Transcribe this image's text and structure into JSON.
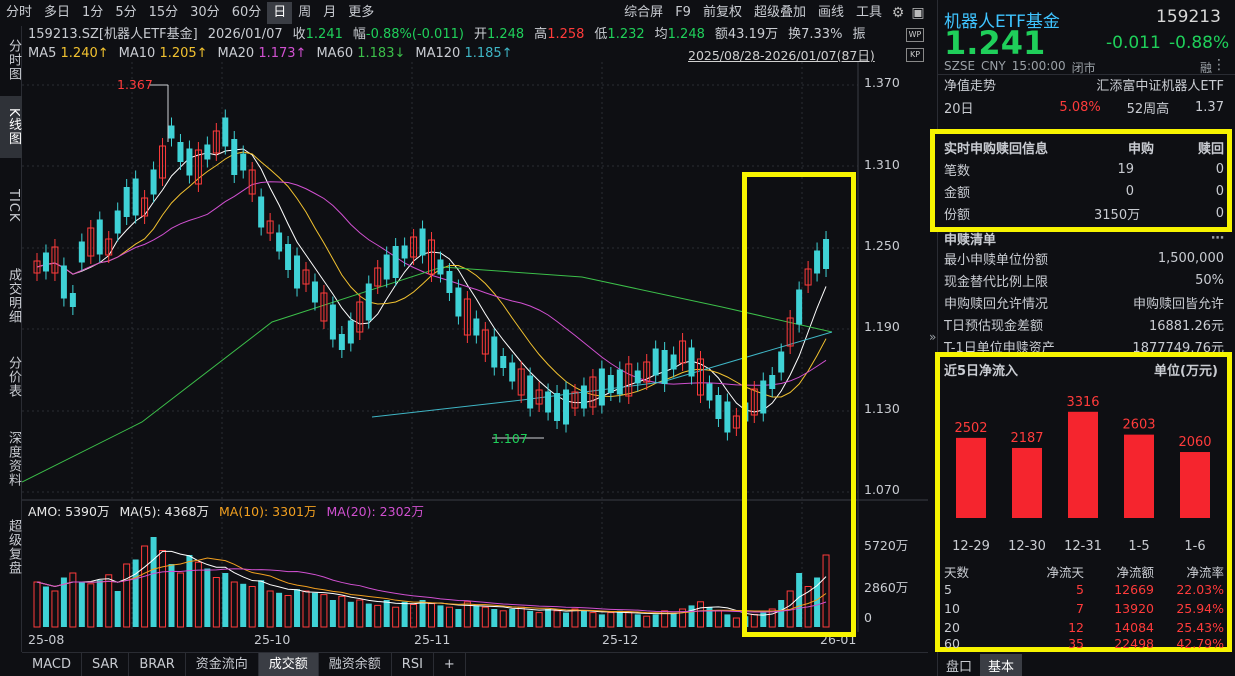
{
  "toolbar": {
    "periods": [
      "分时",
      "多日",
      "1分",
      "5分",
      "15分",
      "30分",
      "60分",
      "日",
      "周",
      "月",
      "更多"
    ],
    "active_period": "日",
    "tools": [
      "综合屏",
      "F9",
      "前复权",
      "超级叠加",
      "画线",
      "工具"
    ]
  },
  "left_tabs": [
    "分时图",
    "K线图",
    "TICK",
    "成交明细",
    "分价表",
    "深度资料",
    "超级复盘"
  ],
  "info": {
    "symbol": "159213.SZ[机器人ETF基金]",
    "date": "2026/01/07",
    "close_label": "收",
    "close": "1.241",
    "change_label": "幅",
    "change": "-0.88%(-0.011)",
    "open_label": "开",
    "open": "1.248",
    "high_label": "高",
    "high": "1.258",
    "low_label": "低",
    "low": "1.232",
    "avg_label": "均",
    "avg": "1.248",
    "amount_label": "额",
    "amount": "43.19万",
    "turnover_label": "换",
    "turnover": "7.33%",
    "amp_label": "振"
  },
  "ma": {
    "ma5": "MA5",
    "ma5_val": "1.240↑",
    "ma10": "MA10",
    "ma10_val": "1.205↑",
    "ma20": "MA20",
    "ma20_val": "1.173↑",
    "ma60": "MA60",
    "ma60_val": "1.183↓",
    "ma120": "MA120",
    "ma120_val": "1.185↑"
  },
  "date_range": "2025/08/28-2026/01/07(87日)",
  "price_axis": [
    "1.370",
    "1.310",
    "1.250",
    "1.190",
    "1.130",
    "1.070"
  ],
  "high_marker": "1.367",
  "low_marker": "1.107",
  "vol_axis": [
    "5720万",
    "2860万",
    "0"
  ],
  "amo": {
    "amo": "AMO: 5390万",
    "ma5": "MA(5): 4368万",
    "ma10": "MA(10): 3301万",
    "ma20": "MA(20): 2302万"
  },
  "x_labels": [
    "25-08",
    "25-10",
    "25-11",
    "25-12",
    "26-01"
  ],
  "bottom_tabs": [
    "MACD",
    "SAR",
    "BRAR",
    "资金流向",
    "成交额",
    "融资余额",
    "RSI",
    "+"
  ],
  "active_bottom_tab": "成交额",
  "colors": {
    "up": "#ff3b3b",
    "down": "#3fd2d6",
    "ma5": "#ffffff",
    "ma10": "#f2c230",
    "ma20": "#d050d0",
    "ma60": "#3cbf4a",
    "ma120": "#3fb6c6",
    "highlight": "#f7f400"
  },
  "quote": {
    "name": "机器人ETF基金",
    "code": "159213",
    "price": "1.241",
    "change": "-0.011",
    "pct": "-0.88%",
    "exchange": "SZSE",
    "currency": "CNY",
    "time": "15:00:00",
    "status": "闭市",
    "margin": "融"
  },
  "nav": {
    "title": "净值走势",
    "index": "汇添富中证机器人ETF",
    "d20_label": "20日",
    "d20": "5.08%",
    "w52h_label": "52周高",
    "w52h": "1.37"
  },
  "realtime": {
    "title": "实时申购赎回信息",
    "col1": "申购",
    "col2": "赎回",
    "rows": [
      {
        "label": "笔数",
        "buy": "19",
        "sell": "0"
      },
      {
        "label": "金额",
        "buy": "0",
        "sell": "0"
      },
      {
        "label": "份额",
        "buy": "3150万",
        "sell": "0"
      }
    ]
  },
  "list": {
    "title": "申赎清单",
    "rows": [
      {
        "label": "最小申赎单位份额",
        "value": "1,500,000"
      },
      {
        "label": "现金替代比例上限",
        "value": "50%"
      },
      {
        "label": "申购赎回允许情况",
        "value": "申购赎回皆允许"
      },
      {
        "label": "T日预估现金差额",
        "value": "16881.26元"
      },
      {
        "label": "T-1日单位申赎资产",
        "value": "1877749.76元"
      }
    ]
  },
  "inflow": {
    "title": "近5日净流入",
    "unit": "单位(万元)",
    "chart_data": {
      "type": "bar",
      "categories": [
        "12-29",
        "12-30",
        "12-31",
        "1-5",
        "1-6"
      ],
      "values": [
        2502,
        2187,
        3316,
        2603,
        2060
      ],
      "title": "近5日净流入",
      "ylabel": "单位(万元)"
    },
    "table_headers": [
      "天数",
      "净流天",
      "净流额",
      "净流率"
    ],
    "table_rows": [
      {
        "days": "5",
        "net_days": "5",
        "amount": "12669",
        "rate": "22.03%"
      },
      {
        "days": "10",
        "net_days": "7",
        "amount": "13920",
        "rate": "25.94%"
      },
      {
        "days": "20",
        "net_days": "12",
        "amount": "14084",
        "rate": "25.43%"
      },
      {
        "days": "60",
        "net_days": "35",
        "amount": "22498",
        "rate": "42.79%"
      }
    ]
  },
  "right_tabs": [
    "盘口",
    "基本"
  ],
  "active_right_tab": "基本"
}
